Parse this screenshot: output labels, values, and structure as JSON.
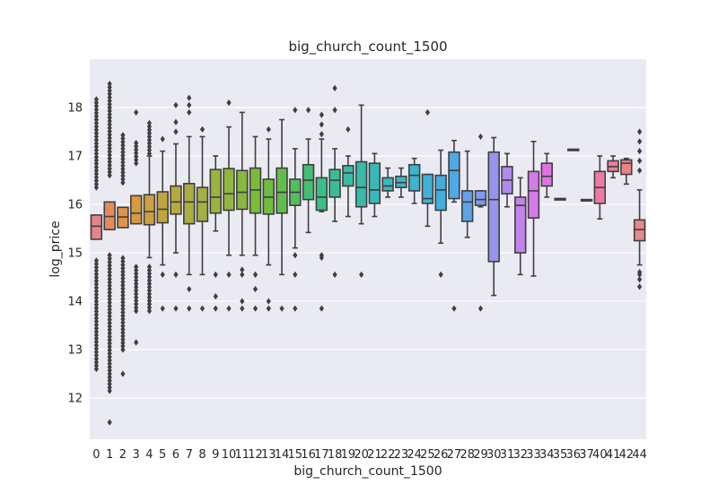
{
  "chart_data": {
    "type": "box",
    "title": "big_church_count_1500",
    "xlabel": "big_church_count_1500",
    "ylabel": "log_price",
    "ylim": [
      11.15,
      19.0
    ],
    "yticks": [
      12,
      13,
      14,
      15,
      16,
      17,
      18
    ],
    "grid": true,
    "categories": [
      "0",
      "1",
      "2",
      "3",
      "4",
      "5",
      "6",
      "7",
      "8",
      "9",
      "10",
      "11",
      "12",
      "13",
      "14",
      "15",
      "16",
      "17",
      "18",
      "19",
      "20",
      "21",
      "22",
      "23",
      "24",
      "25",
      "26",
      "27",
      "28",
      "29",
      "30",
      "31",
      "32",
      "33",
      "34",
      "35",
      "36",
      "37",
      "40",
      "41",
      "42",
      "44"
    ],
    "palette": [
      "#E8838A",
      "#E68A5E",
      "#E09248",
      "#D79A3F",
      "#CC9F3F",
      "#C1A43F",
      "#B6A93F",
      "#ABAE3F",
      "#A2B13F",
      "#99B43F",
      "#90B63F",
      "#86B83F",
      "#7BBA3F",
      "#70BC41",
      "#62BE4C",
      "#52BF5F",
      "#44BF74",
      "#3DBE86",
      "#3ABD95",
      "#39BBA2",
      "#38BAAC",
      "#38B9B5",
      "#39B7BE",
      "#3BB5C6",
      "#3DB3CE",
      "#40B0D6",
      "#45ADDE",
      "#4FA9E4",
      "#5EA3E8",
      "#7A9CEA",
      "#9794EB",
      "#AF8BEB",
      "#C283EA",
      "#D37BE8",
      "#E074E2",
      "#E871D5",
      "#EE71C5",
      "#EF74B6",
      "#EE78A8",
      "#EB7D99",
      "#E8838A",
      "#E5898A"
    ],
    "boxes": [
      {
        "q1": 15.28,
        "med": 15.55,
        "q3": 15.78,
        "wlo": null,
        "whi": null,
        "outliers": []
      },
      {
        "q1": 15.48,
        "med": 15.75,
        "q3": 16.05,
        "wlo": null,
        "whi": null,
        "outliers": []
      },
      {
        "q1": 15.52,
        "med": 15.74,
        "q3": 15.94,
        "wlo": null,
        "whi": null,
        "outliers": [
          12.5
        ]
      },
      {
        "q1": 15.6,
        "med": 15.82,
        "q3": 16.18,
        "wlo": null,
        "whi": null,
        "outliers": [
          13.15,
          17.9
        ]
      },
      {
        "q1": 15.58,
        "med": 15.85,
        "q3": 16.2,
        "wlo": 14.9,
        "whi": 17.0,
        "outliers": []
      },
      {
        "q1": 15.62,
        "med": 15.9,
        "q3": 16.26,
        "wlo": 14.75,
        "whi": 17.1,
        "outliers": [
          13.85,
          14.55,
          17.35
        ]
      },
      {
        "q1": 15.8,
        "med": 16.05,
        "q3": 16.38,
        "wlo": 15.0,
        "whi": 17.25,
        "outliers": [
          13.85,
          14.55,
          17.5,
          17.7,
          18.05
        ]
      },
      {
        "q1": 15.6,
        "med": 16.05,
        "q3": 16.43,
        "wlo": 14.55,
        "whi": 17.4,
        "outliers": [
          13.85,
          14.25,
          17.9,
          18.05,
          18.2
        ]
      },
      {
        "q1": 15.65,
        "med": 16.05,
        "q3": 16.35,
        "wlo": 14.55,
        "whi": 17.4,
        "outliers": [
          13.85,
          17.55
        ]
      },
      {
        "q1": 15.82,
        "med": 16.15,
        "q3": 16.72,
        "wlo": 15.45,
        "whi": 17.0,
        "outliers": [
          13.85,
          14.1,
          14.55
        ]
      },
      {
        "q1": 15.88,
        "med": 16.22,
        "q3": 16.74,
        "wlo": 14.95,
        "whi": 17.6,
        "outliers": [
          13.85,
          14.55,
          18.1
        ]
      },
      {
        "q1": 15.9,
        "med": 16.25,
        "q3": 16.7,
        "wlo": 14.95,
        "whi": 17.9,
        "outliers": [
          13.85,
          14.0,
          14.55,
          14.65
        ]
      },
      {
        "q1": 15.82,
        "med": 16.3,
        "q3": 16.75,
        "wlo": 14.95,
        "whi": 17.4,
        "outliers": [
          13.85,
          14.25,
          14.55
        ]
      },
      {
        "q1": 15.8,
        "med": 16.15,
        "q3": 16.52,
        "wlo": 14.75,
        "whi": 17.35,
        "outliers": [
          13.85,
          14.0,
          17.55
        ]
      },
      {
        "q1": 15.82,
        "med": 16.25,
        "q3": 16.75,
        "wlo": 14.55,
        "whi": 17.75,
        "outliers": [
          13.85
        ]
      },
      {
        "q1": 15.98,
        "med": 16.25,
        "q3": 16.52,
        "wlo": 15.1,
        "whi": 17.15,
        "outliers": [
          13.85,
          14.55,
          14.95,
          17.95
        ]
      },
      {
        "q1": 16.1,
        "med": 16.5,
        "q3": 16.82,
        "wlo": 15.42,
        "whi": 17.35,
        "outliers": [
          17.95
        ]
      },
      {
        "q1": 15.88,
        "med": 16.15,
        "q3": 16.55,
        "wlo": 15.85,
        "whi": 17.35,
        "outliers": [
          13.85,
          14.9,
          14.95,
          17.45,
          17.65,
          17.85
        ]
      },
      {
        "q1": 16.15,
        "med": 16.5,
        "q3": 16.72,
        "wlo": 15.65,
        "whi": 17.15,
        "outliers": [
          14.55,
          17.95,
          18.4
        ]
      },
      {
        "q1": 16.38,
        "med": 16.65,
        "q3": 16.8,
        "wlo": 15.75,
        "whi": 17.0,
        "outliers": [
          17.55
        ]
      },
      {
        "q1": 15.95,
        "med": 16.35,
        "q3": 16.88,
        "wlo": 15.6,
        "whi": 18.05,
        "outliers": [
          14.55
        ]
      },
      {
        "q1": 16.02,
        "med": 16.3,
        "q3": 16.85,
        "wlo": 15.75,
        "whi": 17.05,
        "outliers": []
      },
      {
        "q1": 16.28,
        "med": 16.38,
        "q3": 16.55,
        "wlo": 16.15,
        "whi": 16.75,
        "outliers": []
      },
      {
        "q1": 16.35,
        "med": 16.45,
        "q3": 16.58,
        "wlo": 16.15,
        "whi": 16.75,
        "outliers": []
      },
      {
        "q1": 16.28,
        "med": 16.6,
        "q3": 16.82,
        "wlo": 16.02,
        "whi": 16.95,
        "outliers": []
      },
      {
        "q1": 16.02,
        "med": 16.12,
        "q3": 16.62,
        "wlo": 15.55,
        "whi": 16.62,
        "outliers": [
          17.9
        ]
      },
      {
        "q1": 15.88,
        "med": 16.3,
        "q3": 16.6,
        "wlo": 15.2,
        "whi": 17.12,
        "outliers": [
          14.55
        ]
      },
      {
        "q1": 16.12,
        "med": 16.7,
        "q3": 17.08,
        "wlo": 16.05,
        "whi": 17.32,
        "outliers": [
          13.85
        ]
      },
      {
        "q1": 15.65,
        "med": 16.05,
        "q3": 16.28,
        "wlo": 15.32,
        "whi": 17.1,
        "outliers": []
      },
      {
        "q1": 15.98,
        "med": 16.1,
        "q3": 16.28,
        "wlo": 15.95,
        "whi": 16.28,
        "outliers": [
          13.85,
          17.4
        ]
      },
      {
        "q1": 14.82,
        "med": 16.1,
        "q3": 17.08,
        "wlo": 14.12,
        "whi": 17.38,
        "outliers": []
      },
      {
        "q1": 16.22,
        "med": 16.5,
        "q3": 16.78,
        "wlo": 15.95,
        "whi": 17.05,
        "outliers": []
      },
      {
        "q1": 15.0,
        "med": 15.98,
        "q3": 16.15,
        "wlo": 14.55,
        "whi": 16.55,
        "outliers": []
      },
      {
        "q1": 15.72,
        "med": 16.28,
        "q3": 16.68,
        "wlo": 14.52,
        "whi": 17.3,
        "outliers": []
      },
      {
        "q1": 16.38,
        "med": 16.58,
        "q3": 16.85,
        "wlo": 16.15,
        "whi": 17.05,
        "outliers": []
      },
      {
        "q1": 16.1,
        "med": 16.12,
        "q3": 16.12,
        "wlo": null,
        "whi": null,
        "outliers": []
      },
      {
        "q1": 17.12,
        "med": 17.13,
        "q3": 17.14,
        "wlo": null,
        "whi": null,
        "outliers": []
      },
      {
        "q1": 16.08,
        "med": 16.09,
        "q3": 16.1,
        "wlo": null,
        "whi": null,
        "outliers": []
      },
      {
        "q1": 16.02,
        "med": 16.35,
        "q3": 16.68,
        "wlo": 15.7,
        "whi": 17.0,
        "outliers": []
      },
      {
        "q1": 16.68,
        "med": 16.78,
        "q3": 16.9,
        "wlo": 16.55,
        "whi": 17.0,
        "outliers": []
      },
      {
        "q1": 16.62,
        "med": 16.85,
        "q3": 16.92,
        "wlo": 16.42,
        "whi": 16.95,
        "outliers": []
      },
      {
        "q1": 15.25,
        "med": 15.48,
        "q3": 15.68,
        "wlo": 14.75,
        "whi": 16.3,
        "outliers": [
          14.3,
          14.45,
          14.55,
          14.6,
          16.7,
          16.9,
          17.1,
          17.3,
          17.5
        ]
      }
    ],
    "dense_outliers": [
      {
        "index": 0,
        "low_from": 12.6,
        "low_to": 14.85,
        "high_from": 16.35,
        "high_to": 18.2
      },
      {
        "index": 1,
        "low_from": 12.15,
        "low_to": 14.95,
        "high_from": 16.6,
        "high_to": 18.55,
        "extra": [
          11.5
        ]
      },
      {
        "index": 2,
        "low_from": 13.0,
        "low_to": 14.95,
        "high_from": 16.45,
        "high_to": 17.45
      },
      {
        "index": 3,
        "low_from": 13.8,
        "low_to": 14.75,
        "high_from": 16.85,
        "high_to": 17.3
      },
      {
        "index": 4,
        "low_from": 13.8,
        "low_to": 14.75,
        "high_from": 17.05,
        "high_to": 17.7
      }
    ]
  }
}
